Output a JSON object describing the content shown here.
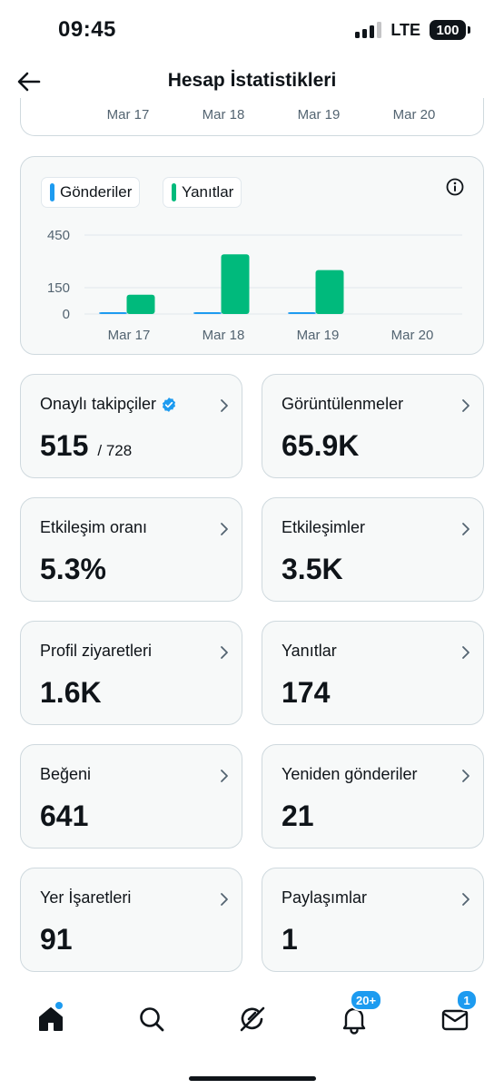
{
  "status_bar": {
    "time": "09:45",
    "network": "LTE",
    "battery": "100"
  },
  "header": {
    "title": "Hesap İstatistikleri",
    "back_icon": "arrow-left-icon"
  },
  "top_chart": {
    "x_labels": [
      "Mar 17",
      "Mar 18",
      "Mar 19",
      "Mar 20"
    ]
  },
  "chart_data": {
    "type": "bar",
    "categories": [
      "Mar 17",
      "Mar 18",
      "Mar 19",
      "Mar 20"
    ],
    "series": [
      {
        "name": "Gönderiler",
        "color": "#1d9bf0",
        "values": [
          2,
          5,
          3,
          0
        ]
      },
      {
        "name": "Yanıtlar",
        "color": "#00ba7c",
        "values": [
          110,
          340,
          250,
          0
        ]
      }
    ],
    "y_ticks": [
      "450",
      "150",
      "0"
    ],
    "y_tick_values": [
      450,
      150,
      0
    ],
    "ylim": [
      0,
      450
    ],
    "legend_position": "top-left",
    "grid": true
  },
  "stats": [
    {
      "label": "Onaylı takipçiler",
      "value": "515",
      "sub": "/ 728",
      "verified": true
    },
    {
      "label": "Görüntülenmeler",
      "value": "65.9K"
    },
    {
      "label": "Etkileşim oranı",
      "value": "5.3%"
    },
    {
      "label": "Etkileşimler",
      "value": "3.5K"
    },
    {
      "label": "Profil ziyaretleri",
      "value": "1.6K"
    },
    {
      "label": "Yanıtlar",
      "value": "174"
    },
    {
      "label": "Beğeni",
      "value": "641"
    },
    {
      "label": "Yeniden gönderiler",
      "value": "21"
    },
    {
      "label": "Yer İşaretleri",
      "value": "91"
    },
    {
      "label": "Paylaşımlar",
      "value": "1"
    }
  ],
  "bottom_nav": {
    "items": [
      "home-icon",
      "search-icon",
      "grok-icon",
      "notifications-icon",
      "messages-icon"
    ],
    "notifications_badge": "20+",
    "messages_badge": "1"
  },
  "colors": {
    "accent": "#1d9bf0",
    "green": "#00ba7c",
    "text": "#0f1419",
    "muted": "#536471"
  }
}
